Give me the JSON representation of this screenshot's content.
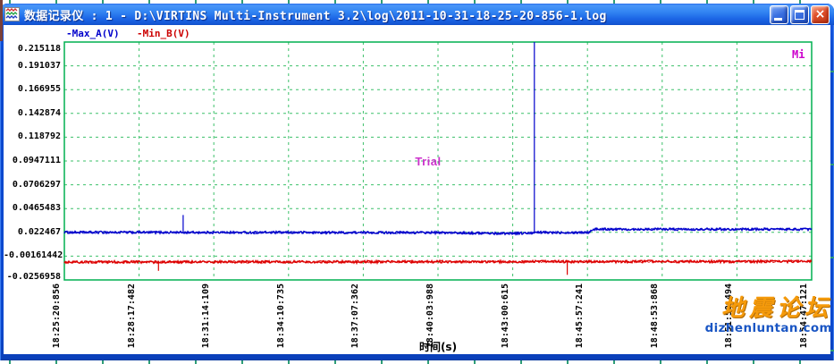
{
  "window": {
    "title": "数据记录仪 : 1 - D:\\VIRTINS Multi-Instrument 3.2\\log\\2011-10-31-18-25-20-856-1.log"
  },
  "icons": {
    "close_glyph": "×"
  },
  "legend": [
    {
      "label": "-Max_A(V)",
      "color": "#0000cc"
    },
    {
      "label": "-Min_B(V)",
      "color": "#cc0000"
    }
  ],
  "page": {
    "watermark": {
      "line1": "地震论坛",
      "line2": "dizhenluntan.com",
      "color1": "#f59a0b",
      "color2": "#1a56c4"
    }
  },
  "chart_data": {
    "type": "line",
    "title": "",
    "xlabel": "时间(s)",
    "ylabel": "",
    "x_tick_labels": [
      "18:25:20:856",
      "18:28:17:482",
      "18:31:14:109",
      "18:34:10:735",
      "18:37:07:362",
      "18:40:03:988",
      "18:43:00:615",
      "18:45:57:241",
      "18:48:53:868",
      "18:51:50:494",
      "18:54:47:121"
    ],
    "y_tick_labels": [
      "0.215118",
      "0.191037",
      "0.166955",
      "0.142874",
      "0.118792",
      "0.0947111",
      "0.0706297",
      "0.0465483",
      "0.022467",
      "-0.00161442",
      "-0.0256958"
    ],
    "y_ticks": [
      0.215118,
      0.191037,
      0.166955,
      0.142874,
      0.118792,
      0.0947111,
      0.0706297,
      0.0465483,
      0.022467,
      -0.00161442,
      -0.0256958
    ],
    "ylim": [
      -0.0256958,
      0.215118
    ],
    "grid": {
      "style": "dashed",
      "color": "#3cc06a"
    },
    "border_color": "#00b050",
    "series": [
      {
        "name": "Max_A(V)",
        "color": "#0000cc",
        "noise": 0.0012,
        "baseline": [
          [
            0,
            0.0225
          ],
          [
            0.5,
            0.0222
          ],
          [
            0.58,
            0.0214
          ],
          [
            0.628,
            0.0218
          ],
          [
            0.632,
            0.0224
          ],
          [
            0.702,
            0.0224
          ],
          [
            0.707,
            0.0257
          ],
          [
            1,
            0.0256
          ]
        ],
        "spikes": [
          [
            0.159,
            0.04
          ],
          [
            0.629,
            0.215118
          ]
        ]
      },
      {
        "name": "Min_B(V)",
        "color": "#dd0000",
        "noise": 0.0013,
        "baseline": [
          [
            0,
            -0.0076
          ],
          [
            1,
            -0.007
          ]
        ],
        "spikes": [
          [
            0.126,
            -0.0165
          ],
          [
            0.673,
            -0.0205
          ]
        ]
      }
    ],
    "annotations": [
      {
        "text": "Trial",
        "color": "#cc33cc",
        "x_frac": 0.486,
        "y_value": 0.0947111
      },
      {
        "text": "Mi",
        "color": "#cc00cc",
        "position": "top-right"
      }
    ]
  }
}
